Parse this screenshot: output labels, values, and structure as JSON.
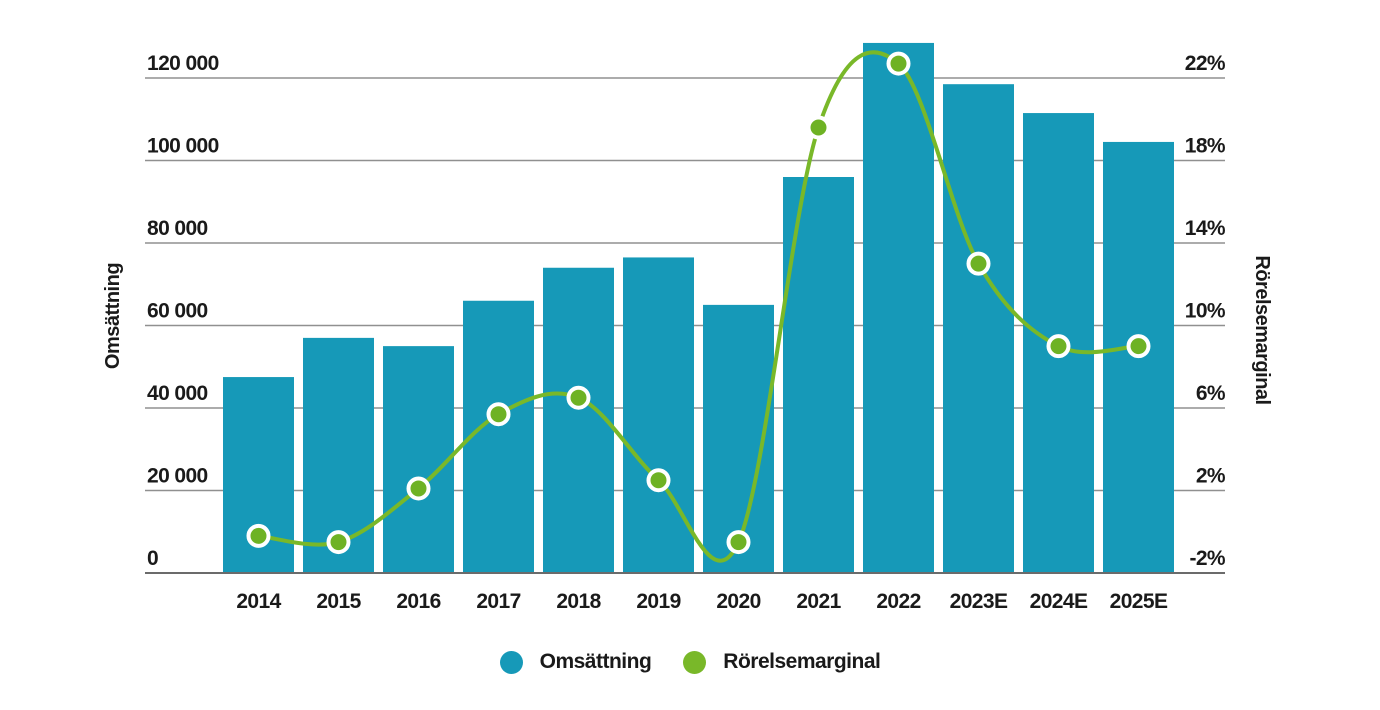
{
  "chart_data": {
    "type": "combo",
    "title": "",
    "categories": [
      "2014",
      "2015",
      "2016",
      "2017",
      "2018",
      "2019",
      "2020",
      "2021",
      "2022",
      "2023E",
      "2024E",
      "2025E"
    ],
    "series": [
      {
        "name": "Omsättning",
        "type": "bar",
        "axis": "left",
        "color": "#1699b8",
        "values": [
          47500,
          57000,
          55000,
          66000,
          74000,
          76500,
          65000,
          96000,
          128500,
          118500,
          111500,
          104500
        ]
      },
      {
        "name": "Rörelsemarginal",
        "type": "line",
        "axis": "right",
        "color": "#79b829",
        "marker_fill": "#6eb224",
        "marker_stroke": "#ffffff",
        "values": [
          -0.2,
          -0.5,
          2.1,
          5.7,
          6.5,
          2.5,
          -0.5,
          19.6,
          22.7,
          13.0,
          9.0,
          9.0
        ]
      }
    ],
    "left_axis": {
      "label": "Omsättning",
      "tick_values": [
        0,
        20000,
        40000,
        60000,
        80000,
        100000,
        120000
      ],
      "tick_labels": [
        "0",
        "20 000",
        "40 000",
        "60 000",
        "80 000",
        "100 000",
        "120 000"
      ],
      "range": [
        0,
        131500
      ]
    },
    "right_axis": {
      "label": "Rörelsemarginal",
      "tick_values": [
        -2,
        2,
        6,
        10,
        14,
        18,
        22
      ],
      "tick_labels": [
        "-2%",
        "2%",
        "6%",
        "10%",
        "14%",
        "18%",
        "22%"
      ],
      "range": [
        -2,
        24.3
      ]
    },
    "grid": true,
    "legend_position": "bottom",
    "legend": [
      {
        "label": "Omsättning",
        "color": "#1699b8"
      },
      {
        "label": "Rörelsemarginal",
        "color": "#79b829"
      }
    ],
    "colors": {
      "grid": "#909090",
      "baseline": "#6b6b6b",
      "text": "#1a1a1a",
      "background": "#ffffff"
    }
  }
}
